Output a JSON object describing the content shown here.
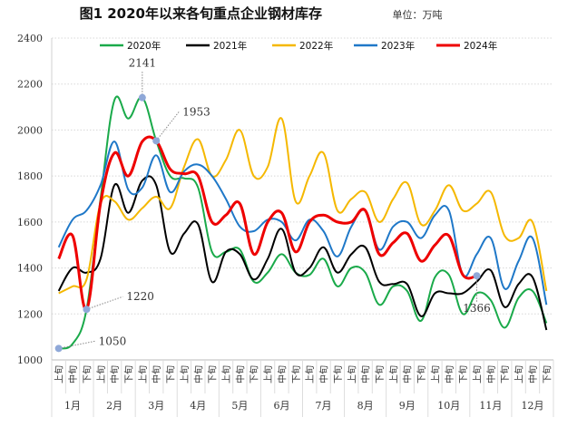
{
  "chart_data": {
    "type": "line",
    "title": "图1  2020年以来各旬重点企业钢材库存",
    "unit": "单位：万吨",
    "ylim": [
      1000,
      2400
    ],
    "yticks": [
      "1000",
      "1200",
      "1400",
      "1600",
      "1800",
      "2000",
      "2200",
      "2400"
    ],
    "ytick_values": [
      1000,
      1200,
      1400,
      1600,
      1800,
      2000,
      2200,
      2400
    ],
    "grid": true,
    "legend_position": "top",
    "ten_day_labels": [
      "上旬",
      "中旬",
      "下旬"
    ],
    "months": [
      "1月",
      "2月",
      "3月",
      "4月",
      "5月",
      "6月",
      "7月",
      "8月",
      "9月",
      "10月",
      "11月",
      "12月"
    ],
    "series": [
      {
        "name": "2020年",
        "color": "#1aaa4a",
        "values": [
          1050,
          1070,
          1220,
          1700,
          2130,
          2050,
          2141,
          1953,
          1800,
          1790,
          1750,
          1470,
          1470,
          1480,
          1340,
          1380,
          1460,
          1380,
          1370,
          1440,
          1320,
          1400,
          1380,
          1240,
          1320,
          1300,
          1170,
          1360,
          1370,
          1200,
          1290,
          1260,
          1140,
          1270,
          1300,
          1160
        ]
      },
      {
        "name": "2021年",
        "color": "#000000",
        "values": [
          1300,
          1400,
          1380,
          1440,
          1760,
          1640,
          1780,
          1760,
          1470,
          1550,
          1590,
          1340,
          1470,
          1460,
          1350,
          1440,
          1570,
          1380,
          1400,
          1490,
          1380,
          1460,
          1490,
          1340,
          1330,
          1330,
          1190,
          1290,
          1290,
          1290,
          1340,
          1390,
          1230,
          1330,
          1360,
          1130
        ]
      },
      {
        "name": "2022年",
        "color": "#f5b800",
        "values": [
          1290,
          1320,
          1350,
          1680,
          1690,
          1610,
          1660,
          1710,
          1660,
          1840,
          1960,
          1800,
          1870,
          2000,
          1800,
          1840,
          2050,
          1690,
          1800,
          1900,
          1650,
          1700,
          1730,
          1600,
          1700,
          1770,
          1590,
          1650,
          1760,
          1650,
          1680,
          1730,
          1540,
          1530,
          1600,
          1300
        ]
      },
      {
        "name": "2023年",
        "color": "#1f78c8",
        "values": [
          1490,
          1610,
          1650,
          1760,
          1950,
          1740,
          1750,
          1890,
          1730,
          1820,
          1850,
          1800,
          1700,
          1580,
          1560,
          1610,
          1600,
          1520,
          1610,
          1560,
          1450,
          1580,
          1650,
          1480,
          1580,
          1600,
          1530,
          1630,
          1650,
          1370,
          1460,
          1530,
          1310,
          1430,
          1530,
          1240
        ]
      },
      {
        "name": "2024年",
        "color": "#ee0000",
        "values": [
          1440,
          1540,
          1220,
          1680,
          1900,
          1800,
          1950,
          1953,
          1830,
          1810,
          1800,
          1600,
          1630,
          1680,
          1460,
          1600,
          1640,
          1470,
          1600,
          1630,
          1600,
          1600,
          1650,
          1460,
          1510,
          1550,
          1430,
          1500,
          1540,
          1370,
          1366
        ]
      }
    ],
    "annotations": [
      {
        "index": 0,
        "value": 1050,
        "text": "1050"
      },
      {
        "index": 2,
        "value": 1220,
        "text": "1220"
      },
      {
        "index": 6,
        "value": 2141,
        "text": "2141"
      },
      {
        "index": 7,
        "value": 1953,
        "text": "1953"
      },
      {
        "index": 30,
        "value": 1366,
        "text": "1366"
      }
    ]
  }
}
